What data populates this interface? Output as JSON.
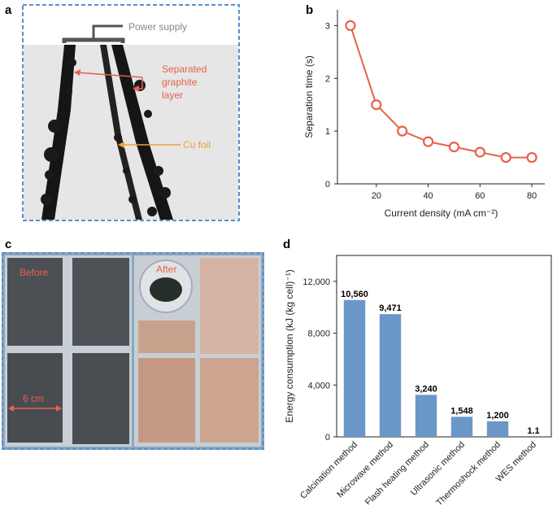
{
  "panels": {
    "a": "a",
    "b": "b",
    "c": "c",
    "d": "d"
  },
  "panel_a": {
    "power_supply": "Power supply",
    "graphite_line1": "Separated",
    "graphite_line2": "graphite",
    "graphite_line3": "layer",
    "cu_foil": "Cu foil",
    "arrow_red": "#e8604c",
    "arrow_orange": "#f0a030",
    "border_color": "#5b8fc9"
  },
  "panel_c": {
    "before": "Before",
    "after": "After",
    "scale": "6 cm",
    "label_color": "#e8604c"
  },
  "chart_data": [
    {
      "type": "line",
      "panel": "b",
      "xlabel": "Current density (mA cm⁻²)",
      "ylabel": "Separation time (s)",
      "x": [
        10,
        20,
        30,
        40,
        50,
        60,
        70,
        80
      ],
      "y": [
        3.0,
        1.5,
        1.0,
        0.8,
        0.7,
        0.6,
        0.5,
        0.5
      ],
      "xlim": [
        5,
        85
      ],
      "ylim": [
        0,
        3.3
      ],
      "xticks": [
        20,
        40,
        60,
        80
      ],
      "yticks": [
        0,
        1,
        2,
        3
      ],
      "color": "#e8604c",
      "grid": false
    },
    {
      "type": "bar",
      "panel": "d",
      "ylabel": "Energy consumption (kJ (kg cell)⁻¹)",
      "categories": [
        "Calcination method",
        "Microwave method",
        "Flash heating method",
        "Ultrasonic method",
        "Thermoshock method",
        "WES method"
      ],
      "values": [
        10560,
        9471,
        3240,
        1548,
        1200,
        1.1
      ],
      "value_labels": [
        "10,560",
        "9,471",
        "3,240",
        "1,548",
        "1,200",
        "1.1"
      ],
      "ylim": [
        0,
        14000
      ],
      "yticks": [
        0,
        4000,
        8000,
        12000
      ],
      "ytick_labels": [
        "0",
        "4,000",
        "8,000",
        "12,000"
      ],
      "color": "#6a97c8",
      "grid": false
    }
  ]
}
